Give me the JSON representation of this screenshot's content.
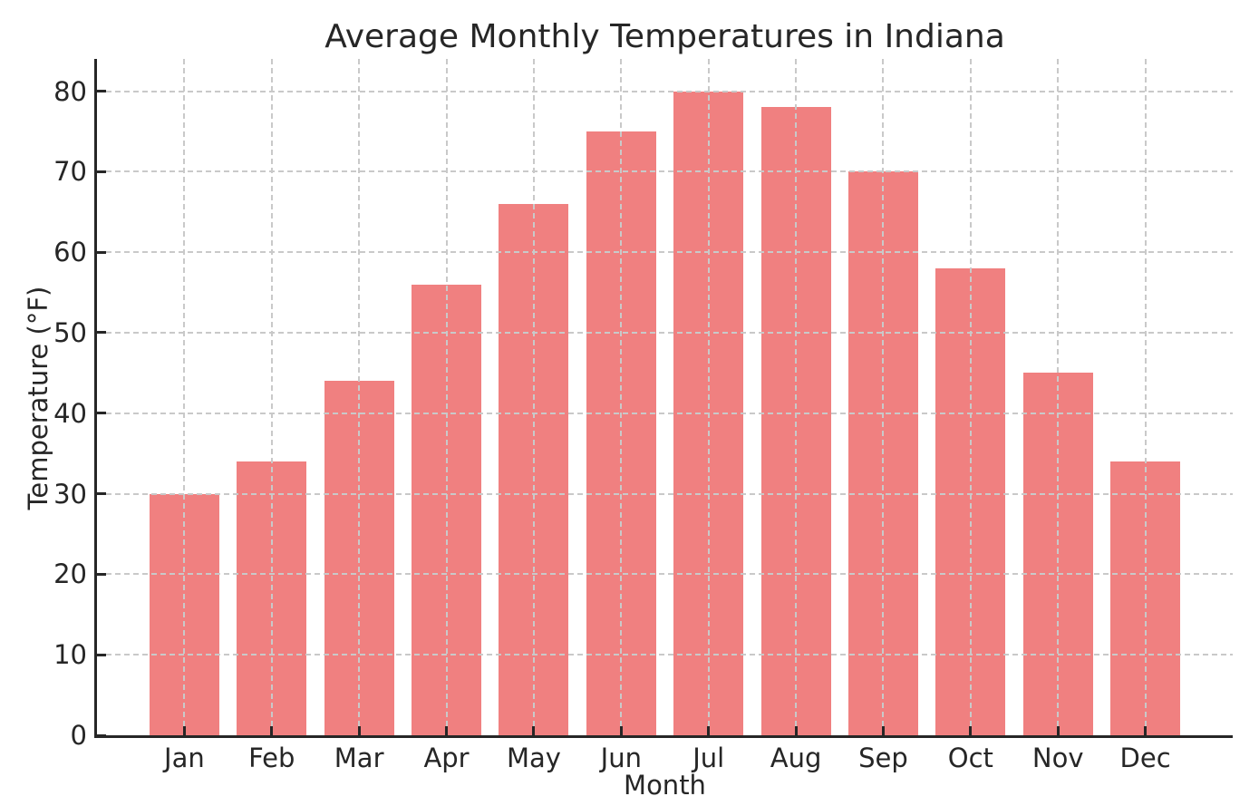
{
  "chart_data": {
    "type": "bar",
    "title": "Average Monthly Temperatures in Indiana",
    "xlabel": "Month",
    "ylabel": "Temperature (°F)",
    "categories": [
      "Jan",
      "Feb",
      "Mar",
      "Apr",
      "May",
      "Jun",
      "Jul",
      "Aug",
      "Sep",
      "Oct",
      "Nov",
      "Dec"
    ],
    "values": [
      30,
      34,
      44,
      56,
      66,
      75,
      80,
      78,
      70,
      58,
      45,
      34
    ],
    "ylim": [
      0,
      84
    ],
    "yticks": [
      0,
      10,
      20,
      30,
      40,
      50,
      60,
      70,
      80
    ],
    "bar_color": "#F08080",
    "grid": {
      "visible": true,
      "style": "dashed",
      "color": "#c9c9c9"
    },
    "legend_position": "none"
  }
}
